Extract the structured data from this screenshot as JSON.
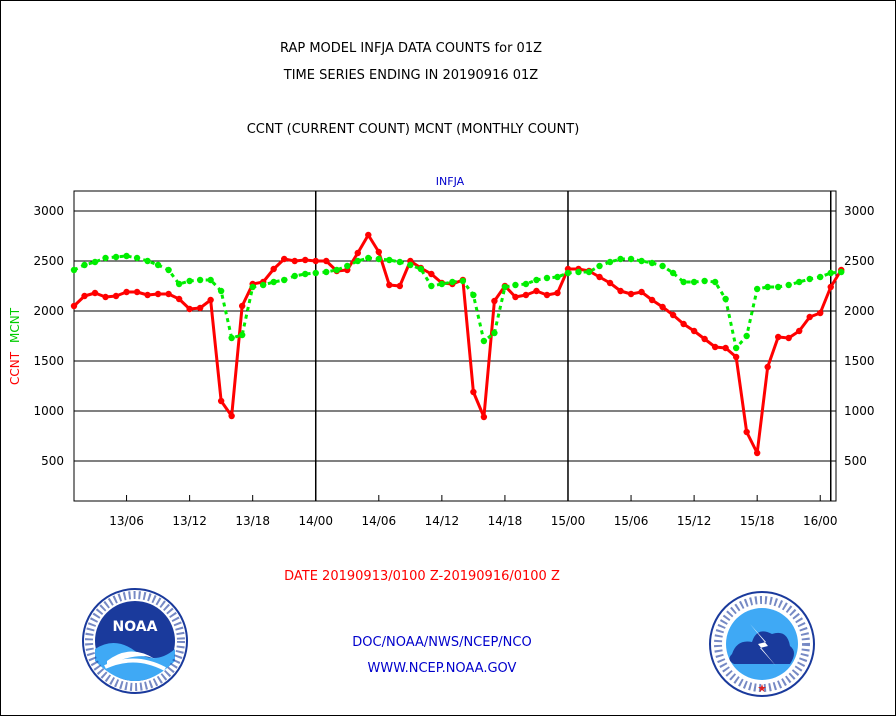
{
  "title_line1": "RAP MODEL INFJA DATA COUNTS for 01Z",
  "title_line2": "TIME SERIES ENDING IN 20190916 01Z",
  "subtitle": "CCNT (CURRENT COUNT) MCNT (MONTHLY COUNT)",
  "date_range": "DATE 20190913/0100 Z-20190916/0100 Z",
  "footer_line1": "DOC/NOAA/NWS/NCEP/NCO",
  "footer_line2": "WWW.NCEP.NOAA.GOV",
  "noaa_logo_text": "NOAA",
  "colors": {
    "ccnt": "#ff0000",
    "mcnt": "#00ee00",
    "label_blue": "#0000cc",
    "red_text": "#ff0000"
  },
  "chart_data": {
    "type": "line",
    "title": "INFJA",
    "ylabel_ccnt": "CCNT",
    "ylabel_mcnt": "MCNT",
    "ylim": [
      100,
      3200
    ],
    "yticks": [
      500,
      1000,
      1500,
      2000,
      2500,
      3000
    ],
    "ytick_labels": [
      "500",
      "1000",
      "1500",
      "2000",
      "2500",
      "3000"
    ],
    "xlim": [
      1,
      73.5
    ],
    "xticks": [
      6,
      12,
      18,
      24,
      30,
      36,
      42,
      48,
      54,
      60,
      66,
      72
    ],
    "xtick_labels": [
      "13/06",
      "13/12",
      "13/18",
      "14/00",
      "14/06",
      "14/12",
      "14/18",
      "15/00",
      "15/06",
      "15/12",
      "15/18",
      "16/00"
    ],
    "day_dividers": [
      24,
      48,
      73
    ],
    "x": [
      1,
      2,
      3,
      4,
      5,
      6,
      7,
      8,
      9,
      10,
      11,
      12,
      13,
      14,
      15,
      16,
      17,
      18,
      19,
      20,
      21,
      22,
      23,
      24,
      25,
      26,
      27,
      28,
      29,
      30,
      31,
      32,
      33,
      34,
      35,
      36,
      37,
      38,
      39,
      40,
      41,
      42,
      43,
      44,
      45,
      46,
      47,
      48,
      49,
      50,
      51,
      52,
      53,
      54,
      55,
      56,
      57,
      58,
      59,
      60,
      61,
      62,
      63,
      64,
      65,
      66,
      67,
      68,
      69,
      70,
      71,
      72,
      73,
      74
    ],
    "series": [
      {
        "name": "CCNT",
        "color": "#ff0000",
        "style": "solid",
        "values": [
          2050,
          2150,
          2180,
          2140,
          2150,
          2190,
          2190,
          2160,
          2170,
          2170,
          2120,
          2020,
          2030,
          2110,
          1100,
          950,
          2050,
          2270,
          2290,
          2420,
          2520,
          2500,
          2510,
          2500,
          2500,
          2400,
          2410,
          2580,
          2760,
          2590,
          2260,
          2250,
          2500,
          2430,
          2370,
          2280,
          2270,
          2310,
          1190,
          940,
          2100,
          2250,
          2140,
          2160,
          2200,
          2160,
          2180,
          2420,
          2420,
          2400,
          2340,
          2280,
          2200,
          2170,
          2190,
          2110,
          2040,
          1960,
          1870,
          1800,
          1720,
          1640,
          1630,
          1540,
          790,
          580,
          1440,
          1740,
          1730,
          1800,
          1940,
          1980,
          2240,
          2410
        ]
      },
      {
        "name": "MCNT",
        "color": "#00ee00",
        "style": "dashed",
        "values": [
          2410,
          2460,
          2490,
          2530,
          2540,
          2550,
          2530,
          2500,
          2460,
          2410,
          2270,
          2300,
          2310,
          2310,
          2200,
          1730,
          1760,
          2240,
          2260,
          2290,
          2310,
          2350,
          2370,
          2380,
          2390,
          2410,
          2450,
          2500,
          2530,
          2520,
          2510,
          2490,
          2460,
          2420,
          2250,
          2270,
          2290,
          2300,
          2160,
          1700,
          1780,
          2240,
          2260,
          2270,
          2310,
          2330,
          2340,
          2380,
          2390,
          2390,
          2450,
          2490,
          2520,
          2520,
          2500,
          2480,
          2450,
          2380,
          2290,
          2290,
          2300,
          2290,
          2120,
          1630,
          1750,
          2220,
          2240,
          2240,
          2260,
          2290,
          2320,
          2340,
          2380,
          2390
        ]
      }
    ]
  }
}
